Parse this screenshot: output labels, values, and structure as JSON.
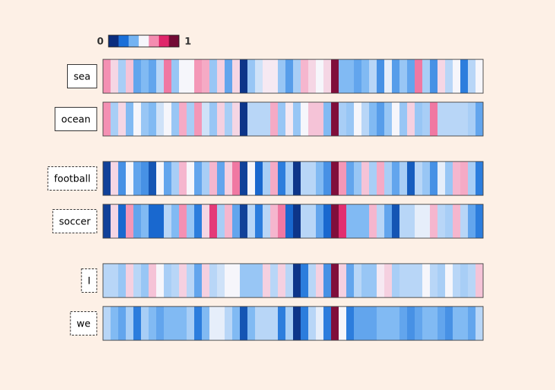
{
  "chart_data": {
    "type": "heatmap",
    "clim": [
      0,
      1
    ],
    "cticks": [
      0,
      1
    ],
    "colors": [
      "#0b2d7e",
      "#1a6fd8",
      "#74b3f2",
      "#f6f6fb",
      "#f48cb0",
      "#e0266a",
      "#730b35"
    ],
    "series": [
      {
        "name": "sea",
        "border": "solid",
        "values": [
          0.66,
          0.55,
          0.4,
          0.58,
          0.3,
          0.35,
          0.3,
          0.42,
          0.7,
          0.38,
          0.5,
          0.5,
          0.65,
          0.62,
          0.38,
          0.56,
          0.3,
          0.55,
          0.02,
          0.38,
          0.45,
          0.52,
          0.52,
          0.38,
          0.28,
          0.4,
          0.6,
          0.55,
          0.5,
          0.55,
          0.98,
          0.35,
          0.35,
          0.3,
          0.35,
          0.42,
          0.25,
          0.48,
          0.28,
          0.38,
          0.3,
          0.7,
          0.4,
          0.25,
          0.55,
          0.42,
          0.5,
          0.2,
          0.42,
          0.5
        ]
      },
      {
        "name": "ocean",
        "border": "solid",
        "values": [
          0.66,
          0.4,
          0.55,
          0.35,
          0.5,
          0.38,
          0.35,
          0.45,
          0.5,
          0.38,
          0.62,
          0.4,
          0.65,
          0.45,
          0.38,
          0.56,
          0.4,
          0.55,
          0.02,
          0.42,
          0.42,
          0.42,
          0.62,
          0.38,
          0.52,
          0.38,
          0.5,
          0.58,
          0.58,
          0.35,
          0.98,
          0.4,
          0.38,
          0.5,
          0.42,
          0.35,
          0.28,
          0.38,
          0.5,
          0.38,
          0.56,
          0.38,
          0.4,
          0.7,
          0.42,
          0.42,
          0.42,
          0.42,
          0.4,
          0.3
        ]
      },
      {
        "name": "football",
        "border": "dashed",
        "values": [
          0.05,
          0.55,
          0.25,
          0.5,
          0.3,
          0.25,
          0.1,
          0.5,
          0.3,
          0.4,
          0.6,
          0.5,
          0.3,
          0.4,
          0.6,
          0.3,
          0.56,
          0.7,
          0.05,
          0.5,
          0.15,
          0.4,
          0.62,
          0.2,
          0.4,
          0.02,
          0.42,
          0.42,
          0.35,
          0.25,
          0.98,
          0.65,
          0.3,
          0.38,
          0.58,
          0.4,
          0.62,
          0.4,
          0.3,
          0.4,
          0.12,
          0.42,
          0.38,
          0.25,
          0.48,
          0.38,
          0.6,
          0.62,
          0.4,
          0.2
        ]
      },
      {
        "name": "soccer",
        "border": "dashed",
        "values": [
          0.05,
          0.55,
          0.15,
          0.65,
          0.3,
          0.35,
          0.15,
          0.15,
          0.42,
          0.35,
          0.66,
          0.38,
          0.2,
          0.55,
          0.8,
          0.4,
          0.6,
          0.3,
          0.05,
          0.42,
          0.2,
          0.42,
          0.6,
          0.7,
          0.15,
          0.02,
          0.42,
          0.42,
          0.3,
          0.15,
          0.98,
          0.82,
          0.35,
          0.35,
          0.35,
          0.6,
          0.42,
          0.3,
          0.1,
          0.42,
          0.42,
          0.48,
          0.48,
          0.6,
          0.42,
          0.4,
          0.6,
          0.42,
          0.3,
          0.2
        ]
      },
      {
        "name": "I",
        "border": "dashed",
        "values": [
          0.42,
          0.42,
          0.38,
          0.56,
          0.42,
          0.38,
          0.58,
          0.5,
          0.4,
          0.42,
          0.56,
          0.42,
          0.3,
          0.56,
          0.42,
          0.45,
          0.5,
          0.5,
          0.38,
          0.38,
          0.38,
          0.56,
          0.42,
          0.56,
          0.42,
          0.02,
          0.2,
          0.42,
          0.56,
          0.25,
          0.98,
          0.56,
          0.3,
          0.42,
          0.38,
          0.38,
          0.52,
          0.56,
          0.4,
          0.42,
          0.42,
          0.42,
          0.5,
          0.42,
          0.4,
          0.5,
          0.42,
          0.4,
          0.42,
          0.58
        ]
      },
      {
        "name": "we",
        "border": "dashed",
        "values": [
          0.42,
          0.35,
          0.3,
          0.4,
          0.2,
          0.4,
          0.35,
          0.3,
          0.35,
          0.35,
          0.35,
          0.4,
          0.2,
          0.35,
          0.48,
          0.48,
          0.42,
          0.35,
          0.1,
          0.35,
          0.42,
          0.42,
          0.42,
          0.2,
          0.4,
          0.02,
          0.2,
          0.42,
          0.48,
          0.2,
          0.98,
          0.5,
          0.2,
          0.3,
          0.3,
          0.3,
          0.35,
          0.35,
          0.35,
          0.3,
          0.25,
          0.3,
          0.35,
          0.35,
          0.3,
          0.25,
          0.35,
          0.35,
          0.3,
          0.42
        ]
      }
    ]
  }
}
